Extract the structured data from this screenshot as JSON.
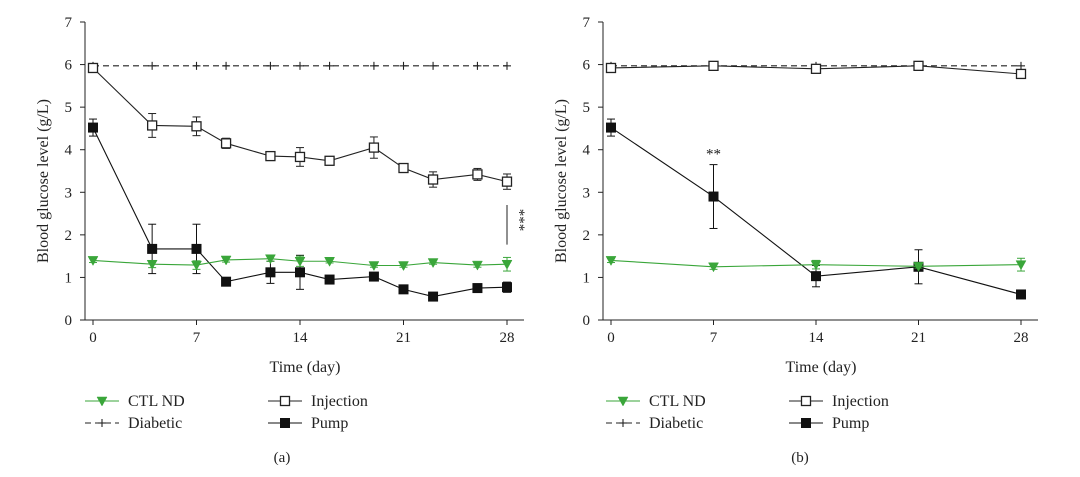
{
  "chart_data": [
    {
      "type": "line",
      "panel_label": "(a)",
      "xlabel": "Time (day)",
      "ylabel": "Blood glucose level (g/L)",
      "xlim": [
        0,
        28
      ],
      "ylim": [
        0,
        7
      ],
      "xticks": [
        0,
        7,
        14,
        21,
        28
      ],
      "yticks": [
        0,
        1,
        2,
        3,
        4,
        5,
        6,
        7
      ],
      "grid": false,
      "legend_position": "bottom",
      "annotation": "***",
      "series": [
        {
          "name": "Diabetic",
          "color": "#222222",
          "marker": "plus",
          "dashed": true,
          "x": [
            0,
            4,
            7,
            9,
            12,
            14,
            16,
            19,
            21,
            23,
            26,
            28
          ],
          "y": [
            5.97,
            5.97,
            5.97,
            5.97,
            5.97,
            5.97,
            5.97,
            5.97,
            5.97,
            5.97,
            5.97,
            5.97
          ],
          "err": [
            0,
            0,
            0,
            0,
            0,
            0,
            0,
            0,
            0,
            0,
            0,
            0
          ]
        },
        {
          "name": "Injection",
          "color": "#222222",
          "marker": "square-open",
          "dashed": false,
          "x": [
            0,
            4,
            7,
            9,
            12,
            14,
            16,
            19,
            21,
            23,
            26,
            28
          ],
          "y": [
            5.92,
            4.57,
            4.55,
            4.15,
            3.85,
            3.83,
            3.74,
            4.05,
            3.57,
            3.3,
            3.42,
            3.25
          ],
          "err": [
            0.05,
            0.28,
            0.22,
            0.12,
            0.1,
            0.22,
            0.08,
            0.25,
            0.1,
            0.18,
            0.14,
            0.18
          ]
        },
        {
          "name": "Pump",
          "color": "#111111",
          "marker": "square-filled",
          "dashed": false,
          "x": [
            0,
            4,
            7,
            9,
            12,
            14,
            16,
            19,
            21,
            23,
            26,
            28
          ],
          "y": [
            4.52,
            1.67,
            1.67,
            0.9,
            1.12,
            1.12,
            0.95,
            1.02,
            0.72,
            0.55,
            0.75,
            0.77
          ],
          "err": [
            0.2,
            0.58,
            0.58,
            0.05,
            0.26,
            0.4,
            0.05,
            0.06,
            0.05,
            0.05,
            0.05,
            0.12
          ]
        },
        {
          "name": "CTL ND",
          "color": "#3aa63a",
          "marker": "triangle-down",
          "dashed": false,
          "x": [
            0,
            4,
            7,
            9,
            12,
            14,
            16,
            19,
            21,
            23,
            26,
            28
          ],
          "y": [
            1.4,
            1.31,
            1.29,
            1.41,
            1.44,
            1.38,
            1.38,
            1.28,
            1.28,
            1.35,
            1.29,
            1.31
          ],
          "err": [
            0.05,
            0.08,
            0.1,
            0.05,
            0.06,
            0.12,
            0.04,
            0.04,
            0.04,
            0.04,
            0.05,
            0.16
          ]
        }
      ]
    },
    {
      "type": "line",
      "panel_label": "(b)",
      "xlabel": "Time (day)",
      "ylabel": "Blood glucose level (g/L)",
      "xlim": [
        0,
        28
      ],
      "ylim": [
        0,
        7
      ],
      "xticks": [
        0,
        7,
        14,
        21,
        28
      ],
      "yticks": [
        0,
        1,
        2,
        3,
        4,
        5,
        6,
        7
      ],
      "grid": false,
      "legend_position": "bottom",
      "annotation": "**",
      "series": [
        {
          "name": "Diabetic",
          "color": "#222222",
          "marker": "plus",
          "dashed": true,
          "x": [
            0,
            7,
            14,
            21,
            28
          ],
          "y": [
            5.97,
            5.97,
            5.97,
            5.97,
            5.97
          ],
          "err": [
            0,
            0,
            0,
            0,
            0
          ]
        },
        {
          "name": "Injection",
          "color": "#222222",
          "marker": "square-open",
          "dashed": false,
          "x": [
            0,
            7,
            14,
            21,
            28
          ],
          "y": [
            5.92,
            5.97,
            5.9,
            5.97,
            5.78
          ],
          "err": [
            0.05,
            0.04,
            0.05,
            0.04,
            0.08
          ]
        },
        {
          "name": "Pump",
          "color": "#111111",
          "marker": "square-filled",
          "dashed": false,
          "x": [
            0,
            7,
            14,
            21,
            28
          ],
          "y": [
            4.52,
            2.9,
            1.03,
            1.25,
            0.6
          ],
          "err": [
            0.2,
            0.75,
            0.25,
            0.4,
            0.04
          ]
        },
        {
          "name": "CTL ND",
          "color": "#3aa63a",
          "marker": "triangle-down",
          "dashed": false,
          "x": [
            0,
            7,
            14,
            21,
            28
          ],
          "y": [
            1.4,
            1.25,
            1.3,
            1.26,
            1.3
          ],
          "err": [
            0.05,
            0.06,
            0.1,
            0.04,
            0.15
          ]
        }
      ]
    }
  ],
  "legend_items": [
    {
      "name": "CTL ND",
      "marker": "triangle-down",
      "dashed": false,
      "color": "#3aa63a"
    },
    {
      "name": "Diabetic",
      "marker": "plus",
      "dashed": true,
      "color": "#222222"
    },
    {
      "name": "Injection",
      "marker": "square-open",
      "dashed": false,
      "color": "#222222"
    },
    {
      "name": "Pump",
      "marker": "square-filled",
      "dashed": false,
      "color": "#111111"
    }
  ]
}
